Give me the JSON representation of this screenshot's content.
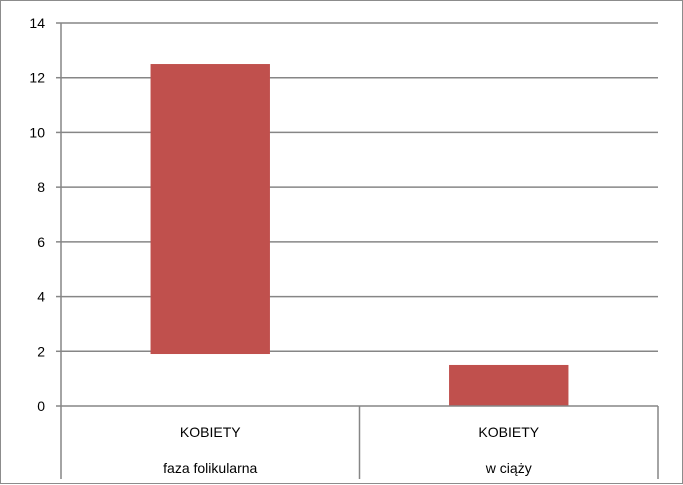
{
  "chart_data": {
    "type": "bar",
    "subtype": "floating",
    "categories": [
      [
        "KOBIETY",
        "faza folikularna"
      ],
      [
        "KOBIETY",
        "w ciąży"
      ]
    ],
    "series": [
      {
        "low": [
          1.9,
          0
        ],
        "high": [
          12.5,
          1.5
        ]
      }
    ],
    "title": "",
    "xlabel": "",
    "ylabel": "",
    "ylim": [
      0,
      14
    ],
    "yticks": [
      "0",
      "2",
      "4",
      "6",
      "8",
      "10",
      "12",
      "14"
    ],
    "grid": true,
    "legend": "none",
    "colors": {
      "bar": "#c0504d",
      "grid": "#868686",
      "axis": "#868686"
    }
  }
}
